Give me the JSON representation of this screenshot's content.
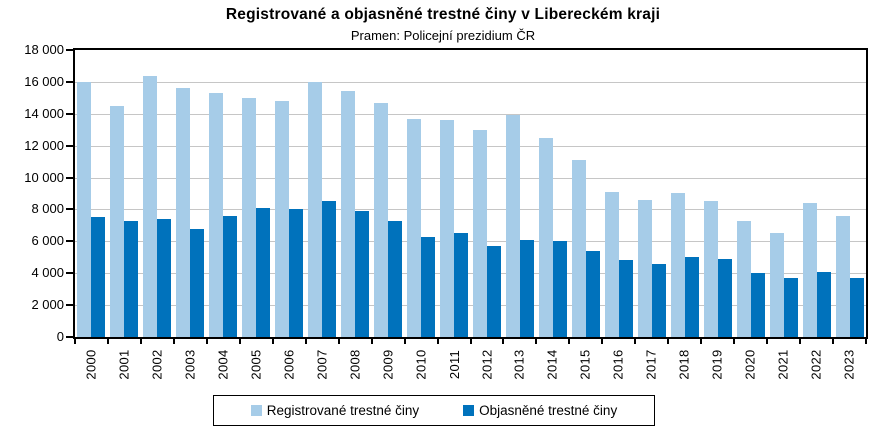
{
  "chart_data": {
    "type": "bar",
    "title": "Registrované a objasněné trestné činy v Libereckém kraji",
    "subtitle": "Pramen: Policejní prezidium ČR",
    "categories": [
      "2000",
      "2001",
      "2002",
      "2003",
      "2004",
      "2005",
      "2006",
      "2007",
      "2008",
      "2009",
      "2010",
      "2011",
      "2012",
      "2013",
      "2014",
      "2015",
      "2016",
      "2017",
      "2018",
      "2019",
      "2020",
      "2021",
      "2022",
      "2023"
    ],
    "series": [
      {
        "name": "Registrované trestné činy",
        "color": "#A6CCE8",
        "values": [
          16000,
          14500,
          16400,
          15600,
          15300,
          15000,
          14800,
          16000,
          15400,
          14700,
          13700,
          13600,
          13000,
          13900,
          12500,
          11100,
          9100,
          8600,
          9000,
          8500,
          7300,
          6500,
          8400,
          7600
        ]
      },
      {
        "name": "Objasněné trestné činy",
        "color": "#0072BC",
        "values": [
          7500,
          7300,
          7400,
          6800,
          7600,
          8100,
          8000,
          8500,
          7900,
          7300,
          6300,
          6500,
          5700,
          6100,
          6000,
          5400,
          4800,
          4600,
          5000,
          4900,
          4000,
          3700,
          4100,
          3700
        ]
      }
    ],
    "ylim": [
      0,
      18000
    ],
    "ytick_step": 2000,
    "ytick_labels": [
      "0",
      "2 000",
      "4 000",
      "6 000",
      "8 000",
      "10 000",
      "12 000",
      "14 000",
      "16 000",
      "18 000"
    ],
    "grid": "horizontal",
    "legend_position": "bottom",
    "axis_color": "#000000",
    "gridline_color": "#C6C6C6"
  }
}
